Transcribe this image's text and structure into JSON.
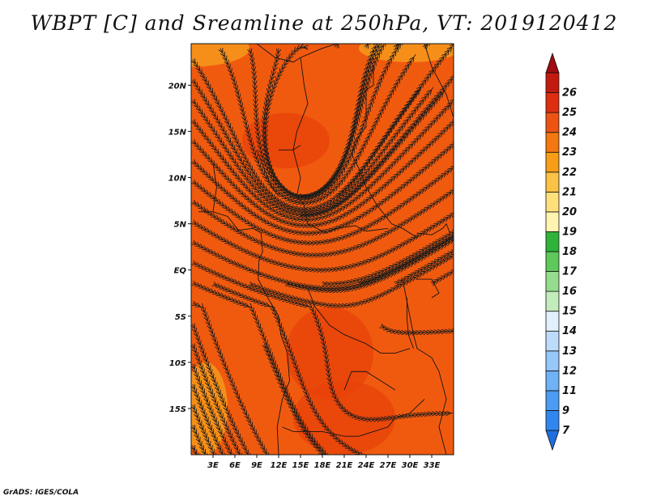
{
  "title": "WBPT [C] and Sreamline at 250hPa, VT: 2019120412",
  "credit": "GrADS: IGES/COLA",
  "map": {
    "lon_range": [
      0,
      36
    ],
    "lat_range": [
      -20,
      24.5
    ],
    "lon_ticks": [
      {
        "value": 3,
        "label": "3E"
      },
      {
        "value": 6,
        "label": "6E"
      },
      {
        "value": 9,
        "label": "9E"
      },
      {
        "value": 12,
        "label": "12E"
      },
      {
        "value": 15,
        "label": "15E"
      },
      {
        "value": 18,
        "label": "18E"
      },
      {
        "value": 21,
        "label": "21E"
      },
      {
        "value": 24,
        "label": "24E"
      },
      {
        "value": 27,
        "label": "27E"
      },
      {
        "value": 30,
        "label": "30E"
      },
      {
        "value": 33,
        "label": "33E"
      }
    ],
    "lat_ticks": [
      {
        "value": 20,
        "label": "20N"
      },
      {
        "value": 15,
        "label": "15N"
      },
      {
        "value": 10,
        "label": "10N"
      },
      {
        "value": 5,
        "label": "5N"
      },
      {
        "value": 0,
        "label": "EQ"
      },
      {
        "value": -5,
        "label": "5S"
      },
      {
        "value": -10,
        "label": "10S"
      },
      {
        "value": -15,
        "label": "15S"
      }
    ],
    "field_colors": {
      "dominant": "#f05a0f",
      "warmer": "#e8410a",
      "cooler": "#f8a21e",
      "coast": "#141414",
      "streamline": "#1c1c1c"
    }
  },
  "colorbar": {
    "levels": [
      "7",
      "9",
      "11",
      "12",
      "13",
      "14",
      "15",
      "16",
      "17",
      "18",
      "19",
      "20",
      "21",
      "22",
      "23",
      "24",
      "25",
      "26"
    ],
    "colors": [
      "#1e6ee0",
      "#2f86ee",
      "#4b9cf2",
      "#6fb2f6",
      "#96c8f9",
      "#bddcfb",
      "#e0f0fd",
      "#c3ecbc",
      "#96dc8e",
      "#5ec85a",
      "#2fb33a",
      "#fff4b0",
      "#ffe07a",
      "#fbc245",
      "#f89d18",
      "#f4770f",
      "#ed5312",
      "#dd2e10",
      "#c31a10",
      "#a00a10"
    ]
  }
}
